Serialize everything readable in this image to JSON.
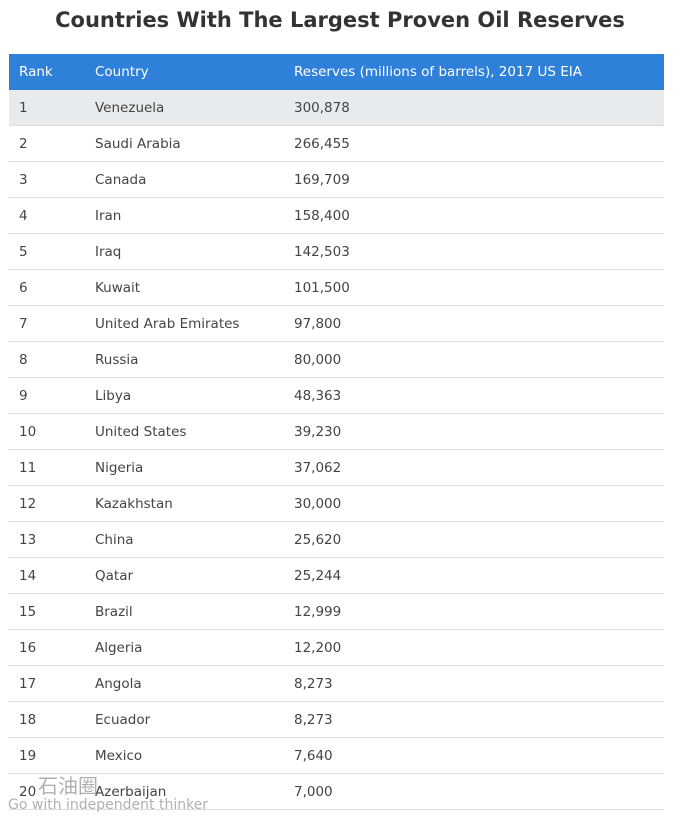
{
  "header": {
    "title": "Countries With The Largest Proven Oil Reserves"
  },
  "table": {
    "columns": [
      "Rank",
      "Country",
      "Reserves (millions of barrels), 2017 US EIA"
    ],
    "rows": [
      [
        "1",
        "Venezuela",
        "300,878"
      ],
      [
        "2",
        "Saudi Arabia",
        "266,455"
      ],
      [
        "3",
        "Canada",
        "169,709"
      ],
      [
        "4",
        "Iran",
        "158,400"
      ],
      [
        "5",
        "Iraq",
        "142,503"
      ],
      [
        "6",
        "Kuwait",
        "101,500"
      ],
      [
        "7",
        "United Arab Emirates",
        "97,800"
      ],
      [
        "8",
        "Russia",
        "80,000"
      ],
      [
        "9",
        "Libya",
        "48,363"
      ],
      [
        "10",
        "United States",
        "39,230"
      ],
      [
        "11",
        "Nigeria",
        "37,062"
      ],
      [
        "12",
        "Kazakhstan",
        "30,000"
      ],
      [
        "13",
        "China",
        "25,620"
      ],
      [
        "14",
        "Qatar",
        "25,244"
      ],
      [
        "15",
        "Brazil",
        "12,999"
      ],
      [
        "16",
        "Algeria",
        "12,200"
      ],
      [
        "17",
        "Angola",
        "8,273"
      ],
      [
        "18",
        "Ecuador",
        "8,273"
      ],
      [
        "19",
        "Mexico",
        "7,640"
      ],
      [
        "20",
        "Azerbaijan",
        "7,000"
      ]
    ]
  },
  "watermark": {
    "brand": "石油圈",
    "tagline": "Go with independent thinker"
  }
}
